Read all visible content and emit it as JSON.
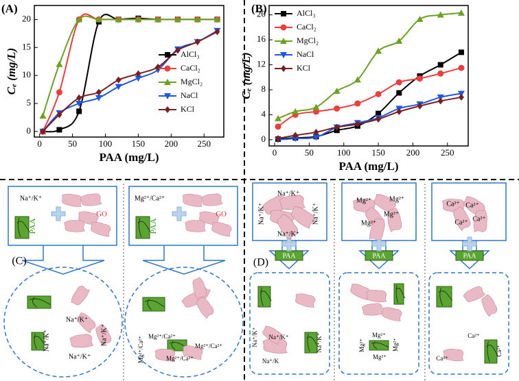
{
  "chart_data": [
    {
      "type": "line",
      "label": "(A)",
      "x_label": "PAA (mg/L)",
      "y_label": "Cₑ (mg/L)",
      "x": [
        5,
        30,
        60,
        90,
        120,
        150,
        180,
        210,
        240,
        270
      ],
      "xlim": [
        -8,
        280
      ],
      "xticks": [
        0,
        50,
        100,
        150,
        200,
        250
      ],
      "ylim": [
        -1,
        22.5
      ],
      "yticks": [
        0,
        5,
        10,
        15,
        20
      ],
      "legend": "lower right",
      "series": [
        {
          "name": "AlCl₃",
          "color": "#000000",
          "marker": "square",
          "values": [
            0,
            0.3,
            3.6,
            19.6,
            20,
            20.2,
            20,
            20,
            20,
            20
          ]
        },
        {
          "name": "CaCl₂",
          "color": "#f03c3c",
          "marker": "circle",
          "values": [
            0,
            7,
            20,
            20,
            20,
            20,
            20,
            20,
            20,
            20
          ]
        },
        {
          "name": "MgCl₂",
          "color": "#6aa121",
          "marker": "triangle",
          "values": [
            2.8,
            12,
            20,
            20,
            20,
            20,
            20,
            20,
            20,
            20
          ]
        },
        {
          "name": "NaCl",
          "color": "#1e56e6",
          "marker": "down-triangle",
          "values": [
            0,
            3.3,
            5,
            6,
            8,
            9.5,
            11,
            14.7,
            16,
            18
          ]
        },
        {
          "name": "KCl",
          "color": "#7a1f1f",
          "marker": "diamond",
          "values": [
            0,
            3,
            6,
            7,
            9.2,
            10.3,
            11.5,
            14.5,
            16,
            17.8
          ]
        }
      ]
    },
    {
      "type": "line",
      "label": "(B)",
      "x_label": "PAA (mg/L)",
      "y_label": "Cₑ (mg/L)",
      "x": [
        5,
        30,
        60,
        90,
        120,
        150,
        180,
        210,
        240,
        270
      ],
      "xlim": [
        -8,
        280
      ],
      "xticks": [
        0,
        50,
        100,
        150,
        200,
        250
      ],
      "ylim": [
        -1,
        21.5
      ],
      "yticks": [
        0,
        4,
        8,
        12,
        16,
        20
      ],
      "legend": "upper left",
      "series": [
        {
          "name": "AlCl₃",
          "color": "#000000",
          "marker": "square",
          "values": [
            0.1,
            0.3,
            0.5,
            1.5,
            2.2,
            4.2,
            7.5,
            10.2,
            12,
            14
          ]
        },
        {
          "name": "CaCl₂",
          "color": "#f03c3c",
          "marker": "circle",
          "values": [
            2.1,
            4,
            4.5,
            5,
            5.8,
            7.3,
            9.2,
            9.8,
            10.6,
            11.5
          ]
        },
        {
          "name": "MgCl₂",
          "color": "#6aa121",
          "marker": "triangle",
          "values": [
            3.4,
            4.5,
            5.2,
            7.8,
            9.6,
            14.2,
            15.8,
            19.3,
            20,
            20.3
          ]
        },
        {
          "name": "NaCl",
          "color": "#1e56e6",
          "marker": "down-triangle",
          "values": [
            0,
            0.2,
            0.4,
            2,
            2.7,
            3.5,
            5,
            5.7,
            6.8,
            7.4
          ]
        },
        {
          "name": "KCl",
          "color": "#7a1f1f",
          "marker": "diamond",
          "values": [
            0.2,
            0.7,
            1.2,
            2,
            2.5,
            3.3,
            4.5,
            5.4,
            6.2,
            6.8
          ]
        }
      ]
    }
  ],
  "diagram_labels": [
    "(C)",
    "Na⁺/K⁺",
    "GO",
    "PAA",
    "Na⁺/K⁺",
    "Na⁺/K⁺",
    "Na⁺/K⁺",
    "Na⁺/K⁺",
    "Mg²⁺/Ca²⁺",
    "GO",
    "PAA",
    "Mg²⁺/Ca²⁺",
    "Mg²⁺/Ca²⁺",
    "Mg²⁺/Ca²⁺",
    "Mg²⁺/Ca²⁺",
    "(D)",
    "Na⁺/K⁺",
    "Na⁺/K⁺",
    "Na⁺/K⁺",
    "Na⁺/K⁺",
    "PAA",
    "Na⁺/K⁺",
    "Na⁺/K⁺",
    "Na⁺/K",
    "Na⁺/K⁺",
    "Mg²⁺",
    "Mg²⁺",
    "Mg²⁺",
    "Mg²⁺",
    "PAA",
    "Mg²⁺",
    "Mg²⁺",
    "Mg²⁺",
    "Mg²⁺",
    "Ca²⁺",
    "Ca²⁺",
    "Ca²⁺",
    "Ca²⁺",
    "PAA",
    "Ca²⁺",
    "Ca²⁺",
    "Ca²⁺"
  ]
}
